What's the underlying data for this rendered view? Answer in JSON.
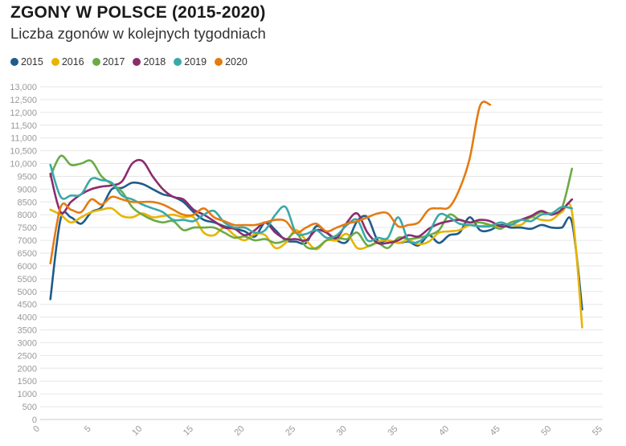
{
  "chart_data": {
    "type": "line",
    "title": "ZGONY W POLSCE (2015-2020)",
    "subtitle": "Liczba zgonów w kolejnych tygodniach",
    "xlim": [
      0,
      55
    ],
    "ylim": [
      0,
      13000
    ],
    "x_ticks": [
      "0",
      "5",
      "10",
      "15",
      "20",
      "25",
      "30",
      "35",
      "40",
      "45",
      "50",
      "55"
    ],
    "y_ticks": [
      "0",
      "500",
      "1000",
      "1500",
      "2000",
      "2500",
      "3000",
      "3500",
      "4000",
      "4500",
      "5000",
      "5500",
      "6000",
      "6500",
      "7000",
      "7500",
      "8000",
      "8500",
      "9000",
      "9500",
      "10,000",
      "10,500",
      "11,000",
      "11,500",
      "12,000",
      "12,500",
      "13,000"
    ],
    "legend_position": "top-left",
    "grid": true,
    "series": [
      {
        "name": "2015",
        "color": "#1f5c8b",
        "x": [
          1,
          2,
          3,
          4,
          5,
          6,
          7,
          8,
          9,
          10,
          11,
          12,
          13,
          14,
          15,
          16,
          17,
          18,
          19,
          20,
          21,
          22,
          23,
          24,
          25,
          26,
          27,
          28,
          29,
          30,
          31,
          32,
          33,
          34,
          35,
          36,
          37,
          38,
          39,
          40,
          41,
          42,
          43,
          44,
          45,
          46,
          47,
          48,
          49,
          50,
          51,
          52,
          53
        ],
        "y": [
          4700,
          7850,
          7900,
          7650,
          8100,
          8300,
          9000,
          9050,
          9250,
          9200,
          9000,
          8800,
          8700,
          8500,
          8100,
          7800,
          7700,
          7550,
          7450,
          7350,
          7150,
          7700,
          7400,
          7000,
          6950,
          6900,
          7550,
          7300,
          7000,
          6950,
          7750,
          7900,
          7000,
          7000,
          6900,
          6950,
          6800,
          7200,
          6900,
          7200,
          7300,
          7900,
          7400,
          7400,
          7600,
          7500,
          7500,
          7450,
          7600,
          7500,
          7500,
          7700,
          4300
        ]
      },
      {
        "name": "2016",
        "color": "#e8b400",
        "x": [
          1,
          2,
          3,
          4,
          5,
          6,
          7,
          8,
          9,
          10,
          11,
          12,
          13,
          14,
          15,
          16,
          17,
          18,
          19,
          20,
          21,
          22,
          23,
          24,
          25,
          26,
          27,
          28,
          29,
          30,
          31,
          32,
          33,
          34,
          35,
          36,
          37,
          38,
          39,
          40,
          41,
          42,
          43,
          44,
          45,
          46,
          47,
          48,
          49,
          50,
          51,
          52,
          53
        ],
        "y": [
          8200,
          8000,
          7700,
          7900,
          8100,
          8200,
          8250,
          7950,
          7900,
          8050,
          7900,
          7950,
          8000,
          7900,
          7900,
          7300,
          7200,
          7500,
          7200,
          7000,
          7250,
          7200,
          6700,
          6900,
          7400,
          7000,
          6650,
          7000,
          7000,
          7250,
          6700,
          6750,
          6950,
          7000,
          6900,
          7000,
          6850,
          6950,
          7300,
          7350,
          7400,
          7600,
          7550,
          7600,
          7550,
          7600,
          7600,
          7900,
          7800,
          7800,
          8100,
          8100,
          3600
        ]
      },
      {
        "name": "2017",
        "color": "#6aab45",
        "x": [
          1,
          2,
          3,
          4,
          5,
          6,
          7,
          8,
          9,
          10,
          11,
          12,
          13,
          14,
          15,
          16,
          17,
          18,
          19,
          20,
          21,
          22,
          23,
          24,
          25,
          26,
          27,
          28,
          29,
          30,
          31,
          32,
          33,
          34,
          35,
          36,
          37,
          38,
          39,
          40,
          41,
          42,
          43,
          44,
          45,
          46,
          47,
          48,
          49,
          50,
          51,
          52
        ],
        "y": [
          9500,
          10300,
          9950,
          10000,
          10100,
          9500,
          9200,
          8900,
          8300,
          8000,
          7800,
          7700,
          7750,
          7400,
          7500,
          7500,
          7500,
          7300,
          7100,
          7150,
          7000,
          7050,
          6900,
          7000,
          7300,
          6750,
          6700,
          7000,
          7100,
          7050,
          7300,
          6800,
          6900,
          6700,
          7100,
          7050,
          7100,
          7200,
          7400,
          8000,
          7800,
          7700,
          7700,
          7600,
          7450,
          7700,
          7800,
          7900,
          8100,
          8050,
          8250,
          9800
        ]
      },
      {
        "name": "2018",
        "color": "#8b2c6e",
        "x": [
          1,
          2,
          3,
          4,
          5,
          6,
          7,
          8,
          9,
          10,
          11,
          12,
          13,
          14,
          15,
          16,
          17,
          18,
          19,
          20,
          21,
          22,
          23,
          24,
          25,
          26,
          27,
          28,
          29,
          30,
          31,
          32,
          33,
          34,
          35,
          36,
          37,
          38,
          39,
          40,
          41,
          42,
          43,
          44,
          45,
          46,
          47,
          48,
          49,
          50,
          51,
          52
        ],
        "y": [
          9600,
          8100,
          8500,
          8800,
          9000,
          9100,
          9150,
          9300,
          10000,
          10100,
          9500,
          9000,
          8700,
          8600,
          8200,
          8000,
          7750,
          7500,
          7450,
          7200,
          7400,
          7700,
          7300,
          7050,
          7050,
          7000,
          7400,
          7300,
          7100,
          7700,
          8050,
          7300,
          6900,
          6900,
          7000,
          7200,
          7150,
          7450,
          7650,
          7750,
          7800,
          7700,
          7800,
          7750,
          7550,
          7600,
          7800,
          7950,
          8150,
          8000,
          8200,
          8600
        ]
      },
      {
        "name": "2019",
        "color": "#3aa8a8",
        "x": [
          1,
          2,
          3,
          4,
          5,
          6,
          7,
          8,
          9,
          10,
          11,
          12,
          13,
          14,
          15,
          16,
          17,
          18,
          19,
          20,
          21,
          22,
          23,
          24,
          25,
          26,
          27,
          28,
          29,
          30,
          31,
          32,
          33,
          34,
          35,
          36,
          37,
          38,
          39,
          40,
          41,
          42,
          43,
          44,
          45,
          46,
          47,
          48,
          49,
          50,
          51,
          52
        ],
        "y": [
          9950,
          8700,
          8750,
          8800,
          9400,
          9350,
          9250,
          8750,
          8600,
          8400,
          8250,
          8100,
          7800,
          7800,
          7750,
          8000,
          8150,
          7700,
          7500,
          7500,
          7300,
          7400,
          8000,
          8300,
          7300,
          7250,
          7400,
          7100,
          7200,
          7600,
          7800,
          7000,
          7100,
          7100,
          7900,
          7000,
          6950,
          7300,
          8000,
          7900,
          7650,
          7600,
          7550,
          7550,
          7700,
          7600,
          7800,
          7750,
          8000,
          8050,
          8300,
          8250
        ]
      },
      {
        "name": "2020",
        "color": "#e47b12",
        "x": [
          1,
          2,
          3,
          4,
          5,
          6,
          7,
          8,
          9,
          10,
          11,
          12,
          13,
          14,
          15,
          16,
          17,
          18,
          19,
          20,
          21,
          22,
          23,
          24,
          25,
          26,
          27,
          28,
          29,
          30,
          31,
          32,
          33,
          34,
          35,
          36,
          37,
          38,
          39,
          40,
          41,
          42,
          43,
          44
        ],
        "y": [
          6100,
          8300,
          8200,
          8100,
          8600,
          8400,
          8700,
          8600,
          8500,
          8500,
          8500,
          8400,
          8200,
          8000,
          8000,
          8250,
          7900,
          7750,
          7600,
          7600,
          7600,
          7700,
          7800,
          7750,
          7300,
          7500,
          7650,
          7350,
          7500,
          7650,
          7750,
          7900,
          8050,
          8050,
          7550,
          7600,
          7700,
          8200,
          8250,
          8300,
          9000,
          10200,
          12250,
          12300
        ]
      }
    ]
  }
}
